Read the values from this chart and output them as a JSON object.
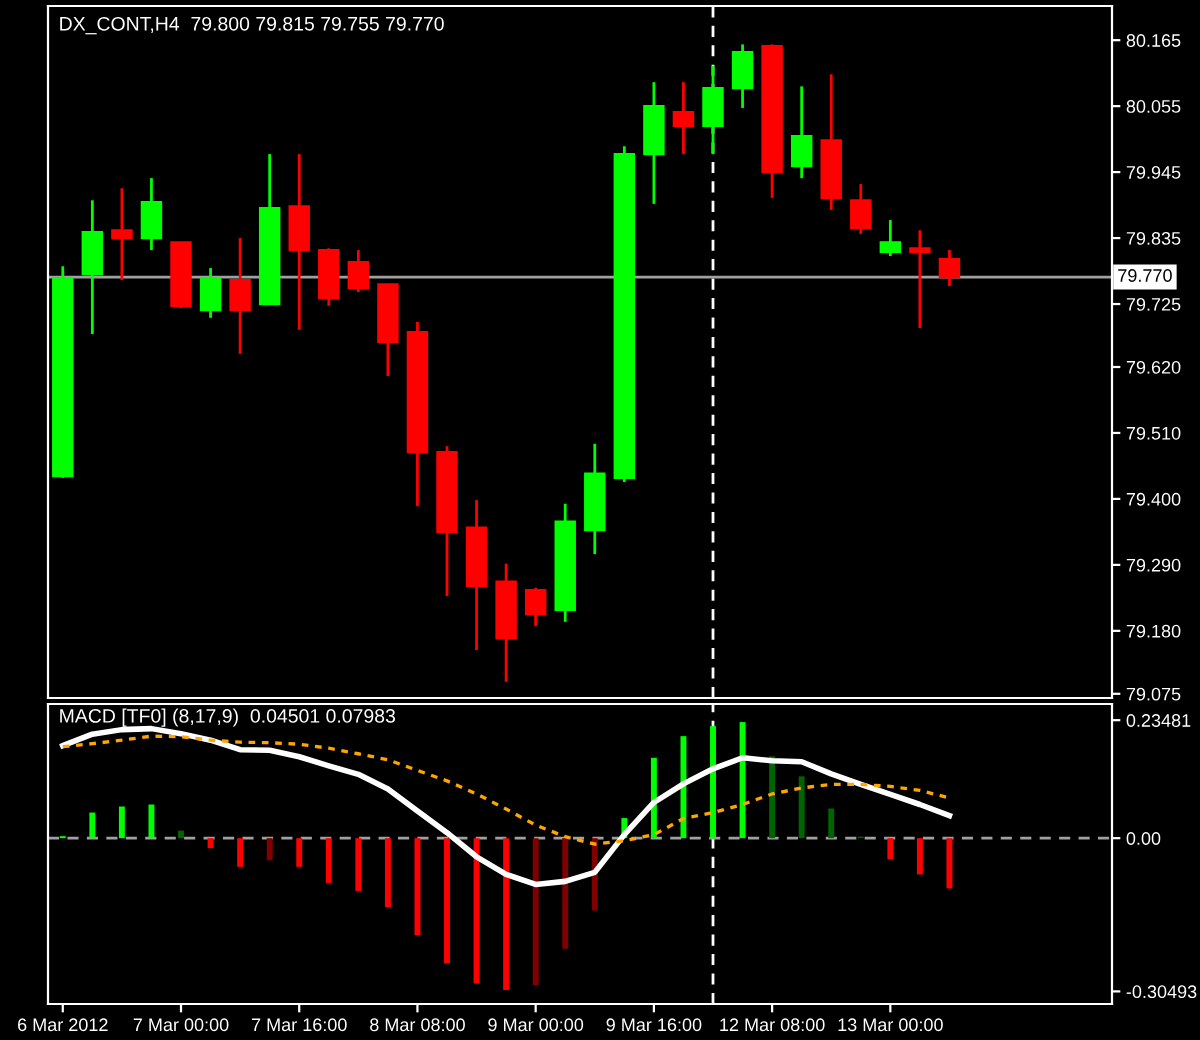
{
  "chart_data": [
    {
      "type": "candlestick",
      "title": "DX_CONT,H4  79.800 79.815 79.755 79.770",
      "tick_labels": "y",
      "ohlc": [
        [
          79.438,
          79.788,
          79.435,
          79.768
        ],
        [
          79.775,
          79.898,
          79.675,
          79.845
        ],
        [
          79.848,
          79.918,
          79.765,
          79.835
        ],
        [
          79.835,
          79.935,
          79.815,
          79.895
        ],
        [
          79.828,
          79.828,
          79.718,
          79.722
        ],
        [
          79.715,
          79.785,
          79.702,
          79.768
        ],
        [
          79.765,
          79.835,
          79.642,
          79.715
        ],
        [
          79.725,
          79.975,
          79.725,
          79.885
        ],
        [
          79.888,
          79.975,
          79.682,
          79.815
        ],
        [
          79.815,
          79.818,
          79.722,
          79.735
        ],
        [
          79.795,
          79.815,
          79.745,
          79.752
        ],
        [
          79.758,
          79.758,
          79.605,
          79.662
        ],
        [
          79.678,
          79.695,
          79.388,
          79.478
        ],
        [
          79.478,
          79.488,
          79.238,
          79.345
        ],
        [
          79.352,
          79.398,
          79.148,
          79.255
        ],
        [
          79.262,
          79.292,
          79.095,
          79.168
        ],
        [
          79.248,
          79.252,
          79.188,
          79.208
        ],
        [
          79.215,
          79.392,
          79.195,
          79.362
        ],
        [
          79.348,
          79.492,
          79.308,
          79.442
        ],
        [
          79.435,
          79.988,
          79.428,
          79.975
        ],
        [
          79.975,
          80.095,
          79.892,
          80.055
        ],
        [
          80.045,
          80.095,
          79.975,
          80.022
        ],
        [
          80.022,
          80.122,
          79.975,
          80.085
        ],
        [
          80.085,
          80.158,
          80.052,
          80.145
        ],
        [
          80.155,
          80.158,
          79.902,
          79.945
        ],
        [
          79.955,
          80.088,
          79.935,
          80.005
        ],
        [
          79.998,
          80.108,
          79.882,
          79.902
        ],
        [
          79.898,
          79.925,
          79.842,
          79.852
        ],
        [
          79.812,
          79.865,
          79.805,
          79.828
        ],
        [
          79.818,
          79.848,
          79.685,
          79.812
        ],
        [
          79.8,
          79.815,
          79.755,
          79.77
        ],
        null,
        null,
        null,
        null,
        null
      ],
      "colors": [
        "#00ff00",
        "#00ff00",
        "#ff0000",
        "#00ff00",
        "#ff0000",
        "#00ff00",
        "#ff0000",
        "#00ff00",
        "#ff0000",
        "#ff0000",
        "#ff0000",
        "#ff0000",
        "#ff0000",
        "#ff0000",
        "#ff0000",
        "#ff0000",
        "#ff0000",
        "#00ff00",
        "#00ff00",
        "#00ff00",
        "#00ff00",
        "#ff0000",
        "#00ff00",
        "#00ff00",
        "#ff0000",
        "#00ff00",
        "#ff0000",
        "#ff0000",
        "#00ff00",
        "#ff0000",
        "#ff0000",
        null,
        null,
        null,
        null,
        null
      ],
      "ylim": [
        79.068,
        80.222
      ],
      "yticks": [
        80.165,
        80.055,
        79.945,
        79.835,
        79.725,
        {
          "value": 79.62,
          "label": "79.620"
        },
        {
          "value": 79.51,
          "label": "79.510"
        },
        {
          "value": 79.4,
          "label": "79.400"
        },
        {
          "value": 79.29,
          "label": "79.290"
        },
        {
          "value": 79.18,
          "label": "79.180"
        },
        79.075
      ],
      "ref_lines": [
        {
          "axis": "y",
          "value": 79.77,
          "label": "79.770",
          "color": "#a0a0a0",
          "line_style": "solid"
        }
      ]
    },
    {
      "type": "bar",
      "title": "MACD [TF0] (8,17,9)  0.04501 0.07983",
      "categories": [
        "6 Mar 2012",
        null,
        null,
        null,
        "7 Mar 00:00",
        null,
        null,
        null,
        "7 Mar 16:00",
        null,
        null,
        null,
        "8 Mar 08:00",
        null,
        null,
        null,
        "9 Mar 00:00",
        null,
        null,
        null,
        "9 Mar 16:00",
        null,
        null,
        null,
        "12 Mar 08:00",
        null,
        null,
        null,
        "13 Mar 00:00",
        null,
        null,
        null,
        null,
        null,
        null,
        null
      ],
      "series": [
        {
          "type": "bar",
          "colors": [
            "#00ff00",
            "#00ff00",
            "#00ff00",
            "#00ff00",
            "#006400",
            "#ff0000",
            "#ff0000",
            "#800000",
            "#ff0000",
            "#ff0000",
            "#ff0000",
            "#ff0000",
            "#ff0000",
            "#ff0000",
            "#ff0000",
            "#ff0000",
            "#800000",
            "#800000",
            "#800000",
            "#00ff00",
            "#00ff00",
            "#00ff00",
            "#00ff00",
            "#00ff00",
            "#006400",
            "#006400",
            "#006400",
            "#006400",
            "#ff0000",
            "#ff0000",
            "#ff0000",
            null,
            null,
            null,
            null,
            null
          ],
          "values": [
            0.004,
            0.051,
            0.063,
            0.067,
            0.015,
            -0.02,
            -0.057,
            -0.044,
            -0.057,
            -0.089,
            -0.105,
            -0.137,
            -0.193,
            -0.249,
            -0.289,
            -0.302,
            -0.292,
            -0.22,
            -0.144,
            0.04,
            0.16,
            0.203,
            0.223,
            0.231,
            0.163,
            0.123,
            0.059,
            0.003,
            -0.042,
            -0.072,
            -0.1,
            null,
            null,
            null,
            null,
            null
          ]
        },
        {
          "type": "line",
          "color": "#ffffff",
          "line_style": "solid",
          "values": [
            0.184,
            0.207,
            0.216,
            0.218,
            0.208,
            0.195,
            0.176,
            0.175,
            0.162,
            0.144,
            0.127,
            0.098,
            0.054,
            0.011,
            -0.037,
            -0.072,
            -0.092,
            -0.086,
            -0.068,
            0.007,
            0.071,
            0.108,
            0.138,
            0.16,
            0.154,
            0.152,
            0.128,
            0.107,
            0.087,
            0.067,
            0.045,
            null,
            null,
            null,
            null,
            null
          ]
        },
        {
          "type": "line",
          "color": "#ffa500",
          "line_style": "dotted",
          "values": [
            0.182,
            0.188,
            0.195,
            0.203,
            0.202,
            0.195,
            0.191,
            0.19,
            0.187,
            0.179,
            0.168,
            0.156,
            0.135,
            0.114,
            0.088,
            0.058,
            0.026,
            0.003,
            -0.012,
            -0.005,
            0.007,
            0.039,
            0.051,
            0.067,
            0.088,
            0.1,
            0.107,
            0.107,
            0.103,
            0.095,
            0.08,
            null,
            null,
            null,
            null,
            null
          ]
        }
      ],
      "ylim": [
        -0.33,
        0.267
      ],
      "yticks": [
        0.23481,
        {
          "value": 0,
          "label": "0.00"
        },
        -0.30493
      ],
      "ref_lines": [
        {
          "axis": "y",
          "value": 0,
          "color": "#a0a0a0",
          "line_style": "dashed"
        }
      ]
    }
  ]
}
